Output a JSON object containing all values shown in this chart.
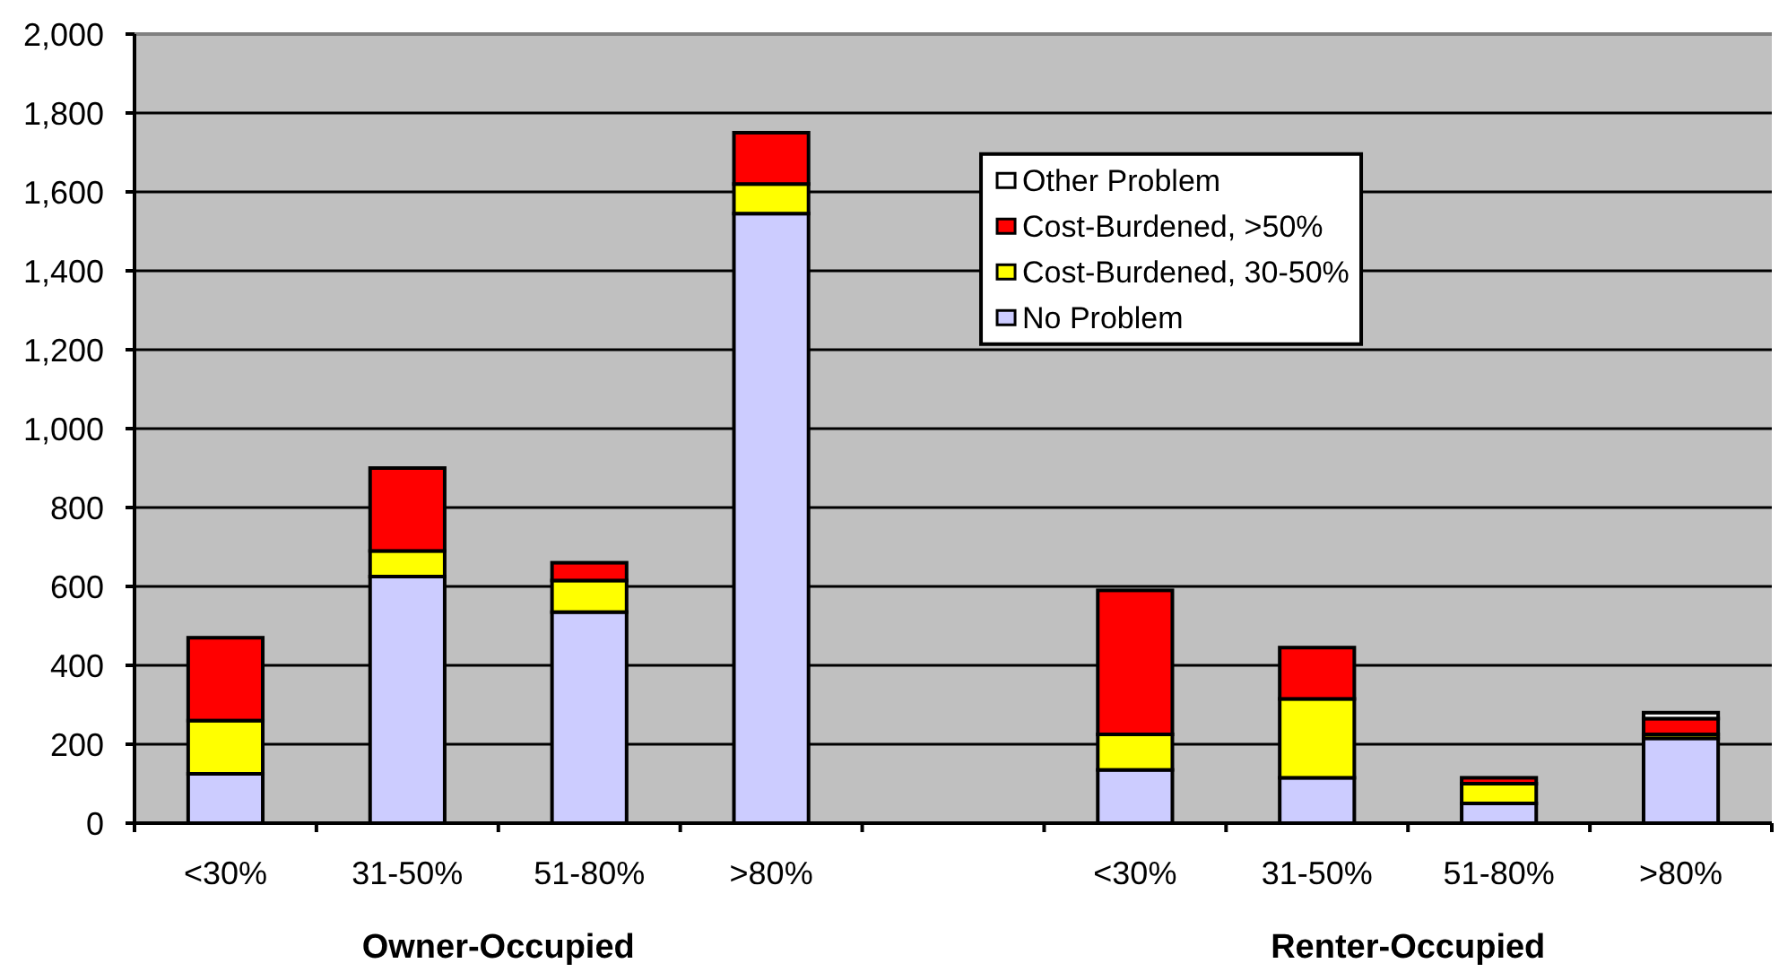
{
  "chart_data": {
    "type": "bar",
    "stacked": true,
    "categories": [
      "<30%",
      "31-50%",
      "51-80%",
      ">80%",
      null,
      "<30%",
      "31-50%",
      "51-80%",
      ">80%"
    ],
    "series": [
      {
        "name": "No Problem",
        "color": "#ccccff",
        "values": [
          125,
          625,
          535,
          1545,
          null,
          135,
          115,
          50,
          215
        ]
      },
      {
        "name": "Cost-Burdened, 30-50%",
        "color": "#ffff00",
        "values": [
          135,
          65,
          80,
          75,
          null,
          90,
          200,
          50,
          10
        ]
      },
      {
        "name": "Cost-Burdened, >50%",
        "color": "#ff0000",
        "values": [
          210,
          210,
          45,
          130,
          null,
          365,
          130,
          15,
          40
        ]
      },
      {
        "name": "Other Problem",
        "color": "#ffffff",
        "values": [
          0,
          0,
          0,
          0,
          null,
          0,
          0,
          0,
          15
        ]
      }
    ],
    "ylim": [
      0,
      2000
    ],
    "yticks": [
      0,
      200,
      400,
      600,
      800,
      {
        "value": 1000,
        "label": "1,000"
      },
      {
        "value": 1200,
        "label": "1,200"
      },
      {
        "value": 1400,
        "label": "1,400"
      },
      {
        "value": 1600,
        "label": "1,600"
      },
      {
        "value": 1800,
        "label": "1,800"
      },
      {
        "value": 2000,
        "label": "2,000"
      }
    ],
    "grid": "y",
    "legend": "top right",
    "annotations": [
      "Owner-Occupied",
      "Renter-Occupied"
    ]
  }
}
